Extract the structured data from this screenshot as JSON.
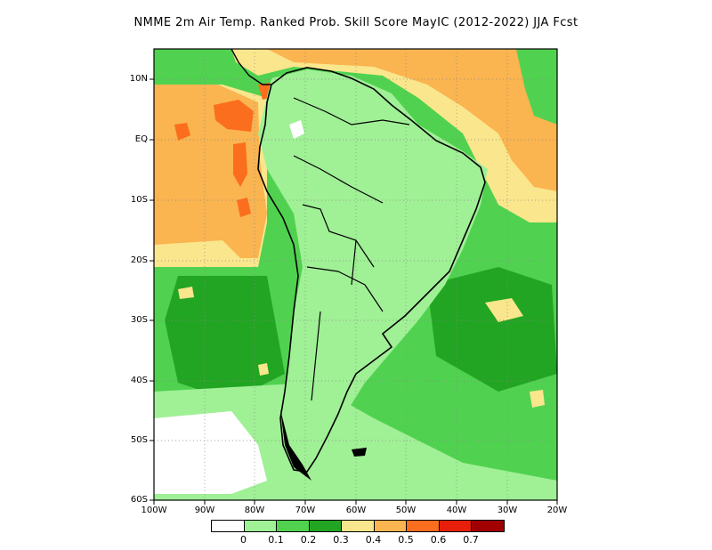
{
  "title": "NMME  2m Air Temp. Ranked Prob. Skill Score MayIC (2012-2022) JJA Fcst",
  "map": {
    "lat_labels": [
      "10N",
      "EQ",
      "10S",
      "20S",
      "30S",
      "40S",
      "50S",
      "60S"
    ],
    "lon_labels": [
      "100W",
      "90W",
      "80W",
      "70W",
      "60W",
      "50W",
      "40W",
      "30W",
      "20W"
    ],
    "lat_range": [
      -60,
      15
    ],
    "lon_range": [
      -100,
      -20
    ],
    "grid": "dotted"
  },
  "colorbar": {
    "colors": [
      "#ffffff",
      "#a0f096",
      "#50d250",
      "#22a522",
      "#fae68c",
      "#fab450",
      "#fa6e1e",
      "#e61e0a",
      "#a00000"
    ],
    "labels": [
      "0",
      "0.1",
      "0.2",
      "0.3",
      "0.4",
      "0.5",
      "0.6",
      "0.7"
    ]
  }
}
